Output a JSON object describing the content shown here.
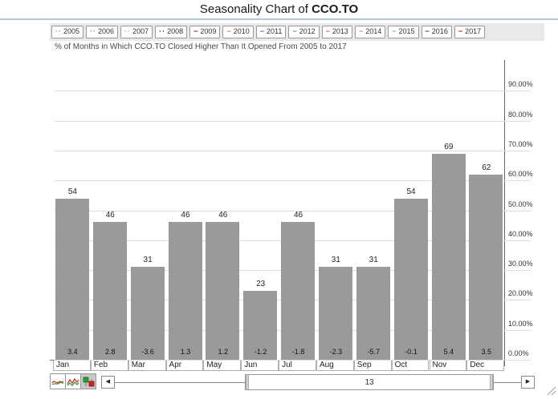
{
  "title": {
    "prefix": "Seasonality Chart of ",
    "ticker": "CCO.TO"
  },
  "subtitle": "% of Months in Which CCO.TO Closed Higher Than It Opened From 2005 to 2017",
  "legend": {
    "years": [
      {
        "label": "2005",
        "marker": "··",
        "color": "#999999"
      },
      {
        "label": "2006",
        "marker": "··",
        "color": "#9e7bb5"
      },
      {
        "label": "2007",
        "marker": "··",
        "color": "#8fca8f"
      },
      {
        "label": "2008",
        "marker": "··",
        "color": "#2b3a55"
      },
      {
        "label": "2009",
        "marker": "−",
        "color": "#7a2020"
      },
      {
        "label": "2010",
        "marker": "−",
        "color": "#cd7054"
      },
      {
        "label": "2011",
        "marker": "−",
        "color": "#6a4a9c"
      },
      {
        "label": "2012",
        "marker": "−",
        "color": "#3d8a78"
      },
      {
        "label": "2013",
        "marker": "−",
        "color": "#b05090"
      },
      {
        "label": "2014",
        "marker": "−",
        "color": "#d06ab0"
      },
      {
        "label": "2015",
        "marker": "−",
        "color": "#7cbf7c"
      },
      {
        "label": "2016",
        "marker": "−",
        "color": "#1f3864"
      },
      {
        "label": "2017",
        "marker": "−",
        "color": "#c00000"
      }
    ]
  },
  "chart_data": {
    "type": "bar",
    "title": "% of Months in Which CCO.TO Closed Higher Than It Opened From 2005 to 2017",
    "categories": [
      "Jan",
      "Feb",
      "Mar",
      "Apr",
      "May",
      "Jun",
      "Jul",
      "Aug",
      "Sep",
      "Oct",
      "Nov",
      "Dec"
    ],
    "values": [
      54,
      46,
      31,
      46,
      46,
      23,
      46,
      31,
      31,
      54,
      69,
      62
    ],
    "series": [
      {
        "name": "percent_of_months_closed_higher",
        "values": [
          54,
          46,
          31,
          46,
          46,
          23,
          46,
          31,
          31,
          54,
          69,
          62
        ]
      },
      {
        "name": "average_monthly_change",
        "values": [
          3.4,
          2.8,
          -3.6,
          1.3,
          1.2,
          -1.2,
          -1.8,
          -2.3,
          -5.7,
          -0.1,
          5.4,
          3.5
        ]
      }
    ],
    "xlabel": "",
    "ylabel": "",
    "ylim": [
      0,
      100
    ],
    "yticks": [
      "0.00%",
      "10.00%",
      "20.00%",
      "30.00%",
      "40.00%",
      "50.00%",
      "60.00%",
      "70.00%",
      "80.00%",
      "90.00%"
    ],
    "y_axis_side": "right",
    "grid": true,
    "bar_color": "#9a9a9a",
    "legend_position": "top",
    "legend_years": [
      "2005",
      "2006",
      "2007",
      "2008",
      "2009",
      "2010",
      "2011",
      "2012",
      "2013",
      "2014",
      "2015",
      "2016",
      "2017"
    ]
  },
  "toolbar": {
    "chart_type_icons": [
      "smooth-line-chart",
      "zigzag-line-chart",
      "candlestick-chart"
    ],
    "scrollbar": {
      "left_arrow": "◀",
      "right_arrow": "▶",
      "thumb_label": "13"
    }
  }
}
